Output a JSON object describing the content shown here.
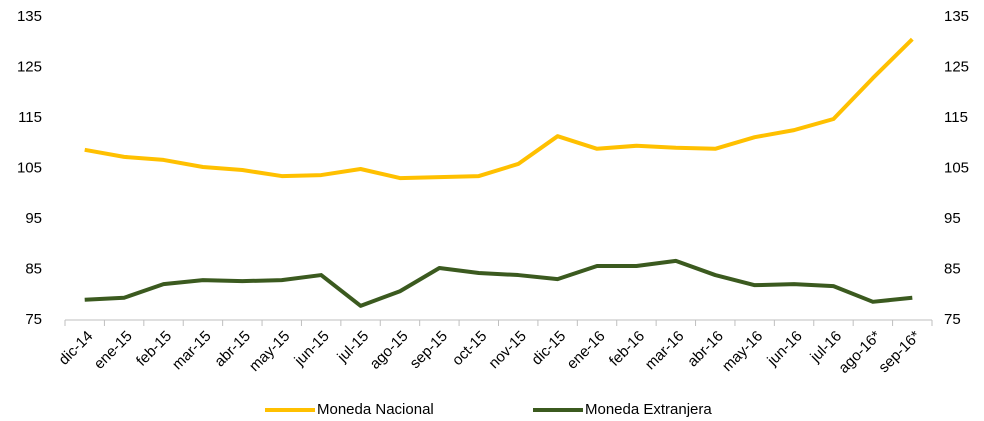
{
  "chart_data": {
    "type": "line",
    "categories": [
      "dic-14",
      "ene-15",
      "feb-15",
      "mar-15",
      "abr-15",
      "may-15",
      "jun-15",
      "jul-15",
      "ago-15",
      "sep-15",
      "oct-15",
      "nov-15",
      "dic-15",
      "ene-16",
      "feb-16",
      "mar-16",
      "abr-16",
      "may-16",
      "jun-16",
      "jul-16",
      "ago-16*",
      "sep-16*"
    ],
    "series": [
      {
        "name": "Moneda Nacional",
        "color": "#ffc000",
        "values": [
          108.7,
          107.3,
          106.7,
          105.3,
          104.7,
          103.5,
          103.7,
          104.9,
          103.1,
          103.3,
          103.5,
          105.9,
          111.4,
          108.9,
          109.5,
          109.1,
          108.9,
          111.2,
          112.6,
          114.8,
          122.9,
          130.6
        ]
      },
      {
        "name": "Moneda Extranjera",
        "color": "#3b5a1f",
        "values": [
          79.0,
          79.4,
          82.1,
          82.9,
          82.7,
          82.9,
          83.9,
          77.8,
          80.7,
          85.3,
          84.3,
          83.9,
          83.1,
          85.7,
          85.7,
          86.7,
          83.9,
          81.9,
          82.1,
          81.7,
          78.6,
          79.4
        ]
      }
    ],
    "ylim": [
      75,
      135
    ],
    "yticks": [
      75,
      85,
      95,
      105,
      115,
      125,
      135
    ],
    "y2lim": [
      75,
      135
    ],
    "y2ticks": [
      75,
      85,
      95,
      105,
      115,
      125,
      135
    ],
    "grid": false,
    "legend": "bottom"
  }
}
